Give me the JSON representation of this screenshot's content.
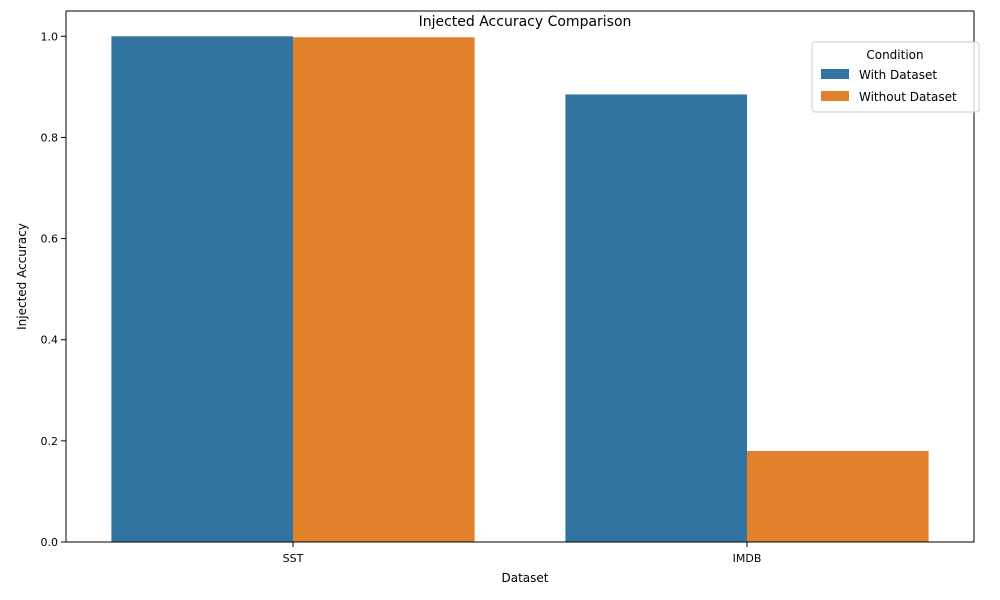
{
  "chart_data": {
    "type": "bar",
    "title": "Injected Accuracy Comparison",
    "xlabel": "Dataset",
    "ylabel": "Injected Accuracy",
    "categories": [
      "SST",
      "IMDB"
    ],
    "series": [
      {
        "name": "With Dataset",
        "color": "#3274a1",
        "values": [
          1.0,
          0.885
        ]
      },
      {
        "name": "Without Dataset",
        "color": "#e1812c",
        "values": [
          0.998,
          0.18
        ]
      }
    ],
    "ylim": [
      0,
      1.05
    ],
    "yticks": [
      "0.0",
      "0.2",
      "0.4",
      "0.6",
      "0.8",
      "1.0"
    ],
    "legend": {
      "title": "Condition",
      "placement": "top-right"
    },
    "grid": false
  }
}
